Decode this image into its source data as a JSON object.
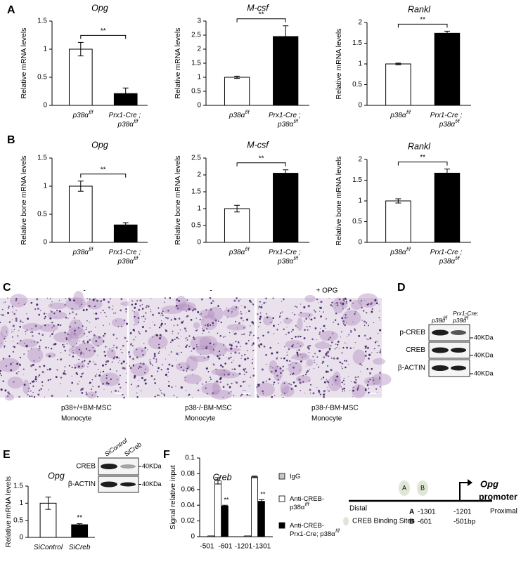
{
  "panel_labels": [
    "A",
    "B",
    "C",
    "D",
    "E",
    "F"
  ],
  "chart_data": [
    {
      "type": "bar",
      "title": "Opg",
      "ylabel": "Relative mRNA levels",
      "categories": [
        "p38α",
        "Prx1-Cre ; p38α"
      ],
      "category_superscripts": [
        "f/f",
        "f/f"
      ],
      "values": [
        1.0,
        0.21
      ],
      "errors": [
        0.12,
        0.1
      ],
      "colors": [
        "#ffffff",
        "#000000"
      ],
      "ylim": [
        0,
        1.5
      ],
      "yticks": [
        0,
        0.5,
        1,
        1.5
      ],
      "annotation": "**"
    },
    {
      "type": "bar",
      "title": "M-csf",
      "ylabel": "Relative mRNA levels",
      "categories": [
        "p38α",
        "Prx1-Cre ; p38α"
      ],
      "category_superscripts": [
        "f/f",
        "f/f"
      ],
      "values": [
        1.0,
        2.45
      ],
      "errors": [
        0.04,
        0.38
      ],
      "colors": [
        "#ffffff",
        "#000000"
      ],
      "ylim": [
        0,
        3
      ],
      "yticks": [
        0,
        0.5,
        1,
        1.5,
        2,
        2.5,
        3
      ],
      "annotation": "**"
    },
    {
      "type": "bar",
      "title": "Rankl",
      "ylabel": "Relative mRNA levels",
      "categories": [
        "p38α",
        "Prx1-Cre ; p38α"
      ],
      "category_superscripts": [
        "f/f",
        "f/f"
      ],
      "values": [
        1.0,
        1.74
      ],
      "errors": [
        0.02,
        0.05
      ],
      "colors": [
        "#ffffff",
        "#000000"
      ],
      "ylim": [
        0,
        2
      ],
      "yticks": [
        0,
        0.5,
        1,
        1.5,
        2
      ],
      "annotation": "**"
    },
    {
      "type": "bar",
      "title": "Opg",
      "ylabel": "Relative bone mRNA levels",
      "categories": [
        "p38α",
        "Prx1-Cre ; p38α"
      ],
      "category_superscripts": [
        "f/f",
        "f/f"
      ],
      "values": [
        1.0,
        0.31
      ],
      "errors": [
        0.09,
        0.04
      ],
      "colors": [
        "#ffffff",
        "#000000"
      ],
      "ylim": [
        0,
        1.5
      ],
      "yticks": [
        0,
        0.5,
        1,
        1.5
      ],
      "annotation": "**"
    },
    {
      "type": "bar",
      "title": "M-csf",
      "ylabel": "Relative bone mRNA levels",
      "categories": [
        "p38α",
        "Prx1-Cre ; p38α"
      ],
      "category_superscripts": [
        "f/f",
        "f/f"
      ],
      "values": [
        1.0,
        2.05
      ],
      "errors": [
        0.1,
        0.1
      ],
      "colors": [
        "#ffffff",
        "#000000"
      ],
      "ylim": [
        0,
        2.5
      ],
      "yticks": [
        0,
        0.5,
        1,
        1.5,
        2,
        2.5
      ],
      "annotation": "**"
    },
    {
      "type": "bar",
      "title": "Rankl",
      "ylabel": "Relative bone mRNA levels",
      "categories": [
        "p38α",
        "Prx1-Cre ; p38α"
      ],
      "category_superscripts": [
        "f/f",
        "f/f"
      ],
      "values": [
        1.0,
        1.67
      ],
      "errors": [
        0.05,
        0.1
      ],
      "colors": [
        "#ffffff",
        "#000000"
      ],
      "ylim": [
        0,
        2
      ],
      "yticks": [
        0,
        0.5,
        1,
        1.5,
        2
      ],
      "annotation": "**"
    },
    {
      "type": "bar",
      "title": "Opg",
      "ylabel": "Relative mRNA levels",
      "categories": [
        "SiControl",
        "SiCreb"
      ],
      "values": [
        1.0,
        0.37
      ],
      "errors": [
        0.18,
        0.03
      ],
      "colors": [
        "#ffffff",
        "#000000"
      ],
      "ylim": [
        0,
        1.5
      ],
      "yticks": [
        0,
        0.5,
        1,
        1.5
      ],
      "annotation": "**"
    },
    {
      "type": "grouped_bar",
      "title": "Creb",
      "ylabel": "Signal relative input",
      "categories": [
        null,
        null
      ],
      "x_tick_labels": [
        "-501",
        "-601",
        "-1201",
        "-1301"
      ],
      "ylim": [
        0,
        0.1
      ],
      "yticks": [
        0,
        0.02,
        0.04,
        0.06,
        0.08,
        0.1
      ],
      "series": [
        {
          "name": "IgG",
          "color": "#c8c8c8",
          "values": [
            0.001,
            0.001
          ]
        },
        {
          "name": "Anti-CREB-p38α",
          "name_sup": "f/f",
          "color": "#ffffff",
          "values": [
            0.071,
            0.076
          ],
          "errors": [
            0.004,
            0.001
          ]
        },
        {
          "name": "Anti-CREB-Prx1-Cre; p38α",
          "name_sup": "f/f",
          "color": "#000000",
          "values": [
            0.039,
            0.045
          ],
          "errors": [
            0.001,
            0.002
          ],
          "annotations": [
            "**",
            "**"
          ]
        }
      ]
    }
  ],
  "micrographs": [
    {
      "header": "-",
      "caption": [
        "p38+/+BM-MSC",
        "Monocyte"
      ]
    },
    {
      "header": "-",
      "caption": [
        "p38-/-BM-MSC",
        "Monocyte"
      ]
    },
    {
      "header": "+ OPG",
      "caption": [
        "p38-/-BM-MSC",
        "Monocyte"
      ]
    }
  ],
  "western_blot_d": {
    "columns": [
      {
        "text": "p38α",
        "sup": "f/f"
      },
      {
        "text": "Prx1-Cre; p38α",
        "sup": "f/f"
      }
    ],
    "rows": [
      "p-CREB",
      "CREB",
      "β-ACTIN"
    ],
    "markers": [
      "40KDa",
      "40KDa",
      "40KDa"
    ]
  },
  "western_blot_e": {
    "columns": [
      "SiControl",
      "SiCreb"
    ],
    "rows": [
      "CREB",
      "β-ACTIN"
    ],
    "markers": [
      "40KDa",
      "40KDa"
    ]
  },
  "promoter_diagram": {
    "gene": "Opg",
    "label": "promoter",
    "distal": "Distal",
    "proximal": "Proximal",
    "sites": [
      "A",
      "B"
    ],
    "legend": "CREB Binding Sites",
    "positions": [
      {
        "site": "A",
        "from": "-1301",
        "to": "-1201"
      },
      {
        "site": "B",
        "from": "-601",
        "to": "-501bp"
      }
    ]
  }
}
